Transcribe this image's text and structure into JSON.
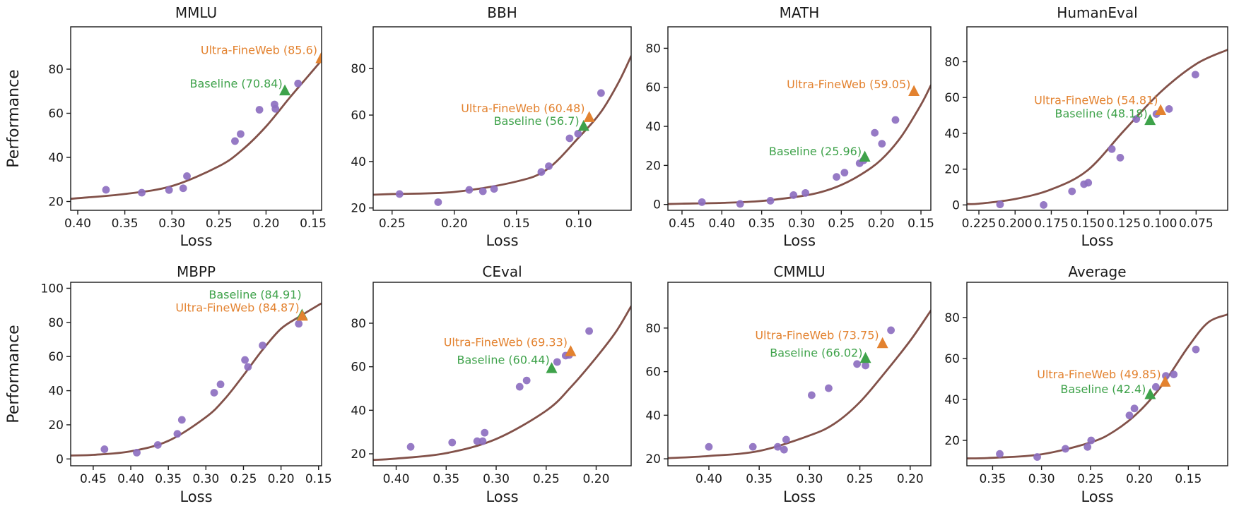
{
  "chart_data": {
    "type": "scatter",
    "title": "",
    "xlabel": "Loss",
    "ylabel": "Performance",
    "grid": false,
    "colors": {
      "scatter": "#8d6fc0",
      "curve": "#825149",
      "ultra": "#e3822f",
      "baseline": "#3ea24a",
      "axis": "#1a1a1a",
      "background": "#ffffff"
    },
    "series_legend": [
      "Ultra-FineWeb",
      "Baseline"
    ],
    "panels": [
      {
        "title": "MMLU",
        "show_ylabel": true,
        "x_ticks": [
          "0.40",
          "0.35",
          "0.30",
          "0.25",
          "0.20",
          "0.15"
        ],
        "y_ticks": [
          20,
          40,
          60,
          80
        ],
        "x_range": [
          0.4075,
          0.141
        ],
        "y_range": [
          16,
          99.2
        ],
        "scatter": [
          [
            0.37,
            25.3
          ],
          [
            0.332,
            24.0
          ],
          [
            0.303,
            25.2
          ],
          [
            0.288,
            26.0
          ],
          [
            0.284,
            31.5
          ],
          [
            0.233,
            47.4
          ],
          [
            0.227,
            50.6
          ],
          [
            0.207,
            61.6
          ],
          [
            0.191,
            64.0
          ],
          [
            0.19,
            62.0
          ],
          [
            0.166,
            73.5
          ]
        ],
        "curve": [
          [
            0.4075,
            21.2
          ],
          [
            0.4,
            21.5
          ],
          [
            0.35,
            23.4
          ],
          [
            0.3,
            27.0
          ],
          [
            0.25,
            36.0
          ],
          [
            0.225,
            43.5
          ],
          [
            0.2,
            54.0
          ],
          [
            0.175,
            67.0
          ],
          [
            0.155,
            77.0
          ],
          [
            0.141,
            84.0
          ]
        ],
        "ultra": {
          "label": "Ultra-FineWeb (85.6)",
          "value": 85.6,
          "x": 0.1415,
          "y": 84.8,
          "label_x": 0.1455,
          "label_y": 88.6
        },
        "baseline": {
          "label": "Baseline (70.84)",
          "value": 70.84,
          "x": 0.18,
          "y": 70.2,
          "label_x": 0.1825,
          "label_y": 73.5
        }
      },
      {
        "title": "BBH",
        "show_ylabel": false,
        "x_ticks": [
          "0.25",
          "0.20",
          "0.15",
          "0.10"
        ],
        "y_ticks": [
          20,
          40,
          60,
          80
        ],
        "x_range": [
          0.2652,
          0.0578
        ],
        "y_range": [
          19,
          98
        ],
        "scatter": [
          [
            0.244,
            26.0
          ],
          [
            0.213,
            22.5
          ],
          [
            0.188,
            27.8
          ],
          [
            0.177,
            27.2
          ],
          [
            0.168,
            28.2
          ],
          [
            0.13,
            35.5
          ],
          [
            0.124,
            38.0
          ],
          [
            0.1073,
            50.0
          ],
          [
            0.1005,
            52.0
          ],
          [
            0.082,
            69.5
          ]
        ],
        "curve": [
          [
            0.2652,
            25.7
          ],
          [
            0.25,
            26.0
          ],
          [
            0.2,
            26.9
          ],
          [
            0.15,
            31.4
          ],
          [
            0.125,
            36.8
          ],
          [
            0.1,
            50.3
          ],
          [
            0.082,
            61.4
          ],
          [
            0.068,
            74.0
          ],
          [
            0.0578,
            85.4
          ]
        ],
        "ultra": {
          "label": "Ultra-FineWeb (60.48)",
          "value": 60.48,
          "x": 0.0915,
          "y": 59.0,
          "label_x": 0.095,
          "label_y": 63.0
        },
        "baseline": {
          "label": "Baseline (56.7)",
          "value": 56.7,
          "x": 0.096,
          "y": 55.2,
          "label_x": 0.0995,
          "label_y": 57.5
        }
      },
      {
        "title": "MATH",
        "show_ylabel": false,
        "x_ticks": [
          "0.45",
          "0.40",
          "0.35",
          "0.30",
          "0.25",
          "0.20",
          "0.15"
        ],
        "y_ticks": [
          0,
          20,
          40,
          60,
          80
        ],
        "x_range": [
          0.4677,
          0.1376
        ],
        "y_range": [
          -3,
          91
        ],
        "scatter": [
          [
            0.425,
            1.2
          ],
          [
            0.377,
            0.3
          ],
          [
            0.339,
            1.9
          ],
          [
            0.31,
            4.8
          ],
          [
            0.295,
            5.9
          ],
          [
            0.256,
            14.1
          ],
          [
            0.246,
            16.3
          ],
          [
            0.227,
            21.1
          ],
          [
            0.222,
            22.6
          ],
          [
            0.208,
            36.7
          ],
          [
            0.199,
            31.1
          ],
          [
            0.182,
            43.3
          ]
        ],
        "curve": [
          [
            0.4677,
            0.2
          ],
          [
            0.45,
            0.4
          ],
          [
            0.4,
            0.8
          ],
          [
            0.35,
            1.8
          ],
          [
            0.3,
            4.3
          ],
          [
            0.275,
            6.4
          ],
          [
            0.25,
            10.0
          ],
          [
            0.225,
            15.4
          ],
          [
            0.2,
            22.9
          ],
          [
            0.175,
            34.6
          ],
          [
            0.15,
            51.1
          ],
          [
            0.1376,
            61.0
          ]
        ],
        "ultra": {
          "label": "Ultra-FineWeb (59.05)",
          "value": 59.05,
          "x": 0.1588,
          "y": 57.9,
          "label_x": 0.163,
          "label_y": 61.5
        },
        "baseline": {
          "label": "Baseline (25.96)",
          "value": 25.96,
          "x": 0.2205,
          "y": 24.3,
          "label_x": 0.2245,
          "label_y": 27.3
        }
      },
      {
        "title": "HumanEval",
        "show_ylabel": false,
        "x_ticks": [
          "0.225",
          "0.200",
          "0.175",
          "0.150",
          "0.125",
          "0.100",
          "0.075"
        ],
        "y_ticks": [
          0,
          20,
          40,
          60,
          80
        ],
        "x_range": [
          0.2333,
          0.0532
        ],
        "y_range": [
          -3,
          99.5
        ],
        "scatter": [
          [
            0.2104,
            0.3
          ],
          [
            0.1803,
            0.0
          ],
          [
            0.1607,
            7.6
          ],
          [
            0.1524,
            11.6
          ],
          [
            0.1495,
            12.4
          ],
          [
            0.1332,
            31.2
          ],
          [
            0.1274,
            26.4
          ],
          [
            0.1163,
            48.0
          ],
          [
            0.1024,
            50.8
          ],
          [
            0.0937,
            53.6
          ],
          [
            0.0755,
            72.8
          ]
        ],
        "curve": [
          [
            0.2333,
            0.5
          ],
          [
            0.225,
            0.7
          ],
          [
            0.2,
            3.3
          ],
          [
            0.175,
            8.7
          ],
          [
            0.15,
            19.3
          ],
          [
            0.125,
            41.3
          ],
          [
            0.1,
            62.7
          ],
          [
            0.075,
            78.7
          ],
          [
            0.0532,
            86.7
          ]
        ],
        "ultra": {
          "label": "Ultra-FineWeb (54.81)",
          "value": 54.81,
          "x": 0.0995,
          "y": 52.8,
          "label_x": 0.1013,
          "label_y": 58.5
        },
        "baseline": {
          "label": "Baseline (48.18)",
          "value": 48.18,
          "x": 0.1068,
          "y": 47.2,
          "label_x": 0.1085,
          "label_y": 51.0
        }
      },
      {
        "title": "MBPP",
        "show_ylabel": true,
        "x_ticks": [
          "0.45",
          "0.40",
          "0.35",
          "0.30",
          "0.25",
          "0.20",
          "0.15"
        ],
        "y_ticks": [
          0,
          20,
          40,
          60,
          80,
          100
        ],
        "x_range": [
          0.48,
          0.146
        ],
        "y_range": [
          -4,
          103.5
        ],
        "scatter": [
          [
            0.435,
            5.7
          ],
          [
            0.392,
            3.7
          ],
          [
            0.364,
            8.2
          ],
          [
            0.338,
            14.7
          ],
          [
            0.332,
            22.9
          ],
          [
            0.289,
            38.8
          ],
          [
            0.2805,
            43.7
          ],
          [
            0.248,
            58.0
          ],
          [
            0.244,
            53.9
          ],
          [
            0.2245,
            66.5
          ],
          [
            0.1764,
            79.2
          ]
        ],
        "curve": [
          [
            0.48,
            2.0
          ],
          [
            0.45,
            2.4
          ],
          [
            0.4,
            4.5
          ],
          [
            0.35,
            10.6
          ],
          [
            0.3,
            24.5
          ],
          [
            0.275,
            35.1
          ],
          [
            0.25,
            49.0
          ],
          [
            0.225,
            63.7
          ],
          [
            0.2,
            76.3
          ],
          [
            0.175,
            83.5
          ],
          [
            0.15,
            90.2
          ],
          [
            0.146,
            91.0
          ]
        ],
        "ultra": {
          "label": "Ultra-FineWeb (84.87)",
          "value": 84.87,
          "x": 0.1717,
          "y": 83.7,
          "label_x": 0.1755,
          "label_y": 88.6
        },
        "baseline": {
          "label": "Baseline (84.91)",
          "value": 84.91,
          "x": 0.172,
          "y": 84.3,
          "label_x": 0.1727,
          "label_y": 96.3
        }
      },
      {
        "title": "CEval",
        "show_ylabel": false,
        "x_ticks": [
          "0.40",
          "0.35",
          "0.30",
          "0.25",
          "0.20"
        ],
        "y_ticks": [
          20,
          40,
          60,
          80
        ],
        "x_range": [
          0.423,
          0.165
        ],
        "y_range": [
          14.5,
          98.8
        ],
        "scatter": [
          [
            0.3855,
            23.2
          ],
          [
            0.344,
            25.2
          ],
          [
            0.319,
            25.8
          ],
          [
            0.3135,
            25.8
          ],
          [
            0.3115,
            29.7
          ],
          [
            0.2765,
            50.8
          ],
          [
            0.2695,
            53.7
          ],
          [
            0.239,
            62.2
          ],
          [
            0.2305,
            65.1
          ],
          [
            0.227,
            65.4
          ],
          [
            0.207,
            76.4
          ]
        ],
        "curve": [
          [
            0.423,
            17.2
          ],
          [
            0.4,
            17.8
          ],
          [
            0.35,
            20.3
          ],
          [
            0.3,
            26.8
          ],
          [
            0.25,
            39.8
          ],
          [
            0.225,
            50.8
          ],
          [
            0.2,
            64.2
          ],
          [
            0.18,
            76.2
          ],
          [
            0.165,
            87.8
          ]
        ],
        "ultra": {
          "label": "Ultra-FineWeb (69.33)",
          "value": 69.33,
          "x": 0.2255,
          "y": 67.0,
          "label_x": 0.2286,
          "label_y": 71.2
        },
        "baseline": {
          "label": "Baseline (60.44)",
          "value": 60.44,
          "x": 0.2445,
          "y": 59.2,
          "label_x": 0.2465,
          "label_y": 63.2
        }
      },
      {
        "title": "CMMLU",
        "show_ylabel": false,
        "x_ticks": [
          "0.40",
          "0.35",
          "0.30",
          "0.25",
          "0.20"
        ],
        "y_ticks": [
          20,
          40,
          60,
          80
        ],
        "x_range": [
          0.4407,
          0.1795
        ],
        "y_range": [
          16.8,
          101
        ],
        "scatter": [
          [
            0.4,
            25.5
          ],
          [
            0.3563,
            25.5
          ],
          [
            0.3316,
            25.5
          ],
          [
            0.3253,
            24.2
          ],
          [
            0.3232,
            28.8
          ],
          [
            0.2979,
            49.2
          ],
          [
            0.281,
            52.4
          ],
          [
            0.2528,
            63.5
          ],
          [
            0.2444,
            62.8
          ],
          [
            0.2191,
            79.0
          ]
        ],
        "curve": [
          [
            0.4407,
            20.3
          ],
          [
            0.4,
            21.3
          ],
          [
            0.35,
            23.6
          ],
          [
            0.3,
            30.7
          ],
          [
            0.275,
            36.2
          ],
          [
            0.25,
            46.0
          ],
          [
            0.225,
            59.6
          ],
          [
            0.2,
            74.2
          ],
          [
            0.1795,
            88.0
          ]
        ],
        "ultra": {
          "label": "Ultra-FineWeb (73.75)",
          "value": 73.75,
          "x": 0.2275,
          "y": 72.9,
          "label_x": 0.231,
          "label_y": 76.8
        },
        "baseline": {
          "label": "Baseline (66.02)",
          "value": 66.02,
          "x": 0.2444,
          "y": 66.1,
          "label_x": 0.2473,
          "label_y": 68.7
        }
      },
      {
        "title": "Average",
        "show_ylabel": false,
        "x_ticks": [
          "0.35",
          "0.30",
          "0.25",
          "0.20",
          "0.15"
        ],
        "y_ticks": [
          20,
          40,
          60,
          80
        ],
        "x_range": [
          0.3763,
          0.1098
        ],
        "y_range": [
          7.6,
          97.2
        ],
        "scatter": [
          [
            0.3427,
            13.4
          ],
          [
            0.3044,
            11.9
          ],
          [
            0.2756,
            15.9
          ],
          [
            0.253,
            16.8
          ],
          [
            0.2493,
            20.0
          ],
          [
            0.2102,
            32.2
          ],
          [
            0.2051,
            35.6
          ],
          [
            0.1832,
            46.1
          ],
          [
            0.173,
            51.5
          ],
          [
            0.1649,
            52.2
          ],
          [
            0.1423,
            64.4
          ]
        ],
        "curve": [
          [
            0.3763,
            11.2
          ],
          [
            0.35,
            11.5
          ],
          [
            0.3,
            13.2
          ],
          [
            0.25,
            19.0
          ],
          [
            0.225,
            24.7
          ],
          [
            0.2,
            34.2
          ],
          [
            0.175,
            48.1
          ],
          [
            0.15,
            65.8
          ],
          [
            0.13,
            77.5
          ],
          [
            0.1098,
            81.5
          ]
        ],
        "ultra": {
          "label": "Ultra-FineWeb (49.85)",
          "value": 49.85,
          "x": 0.1737,
          "y": 48.5,
          "label_x": 0.178,
          "label_y": 52.2
        },
        "baseline": {
          "label": "Baseline (42.4)",
          "value": 42.4,
          "x": 0.189,
          "y": 42.4,
          "label_x": 0.1933,
          "label_y": 45.1
        }
      }
    ]
  }
}
